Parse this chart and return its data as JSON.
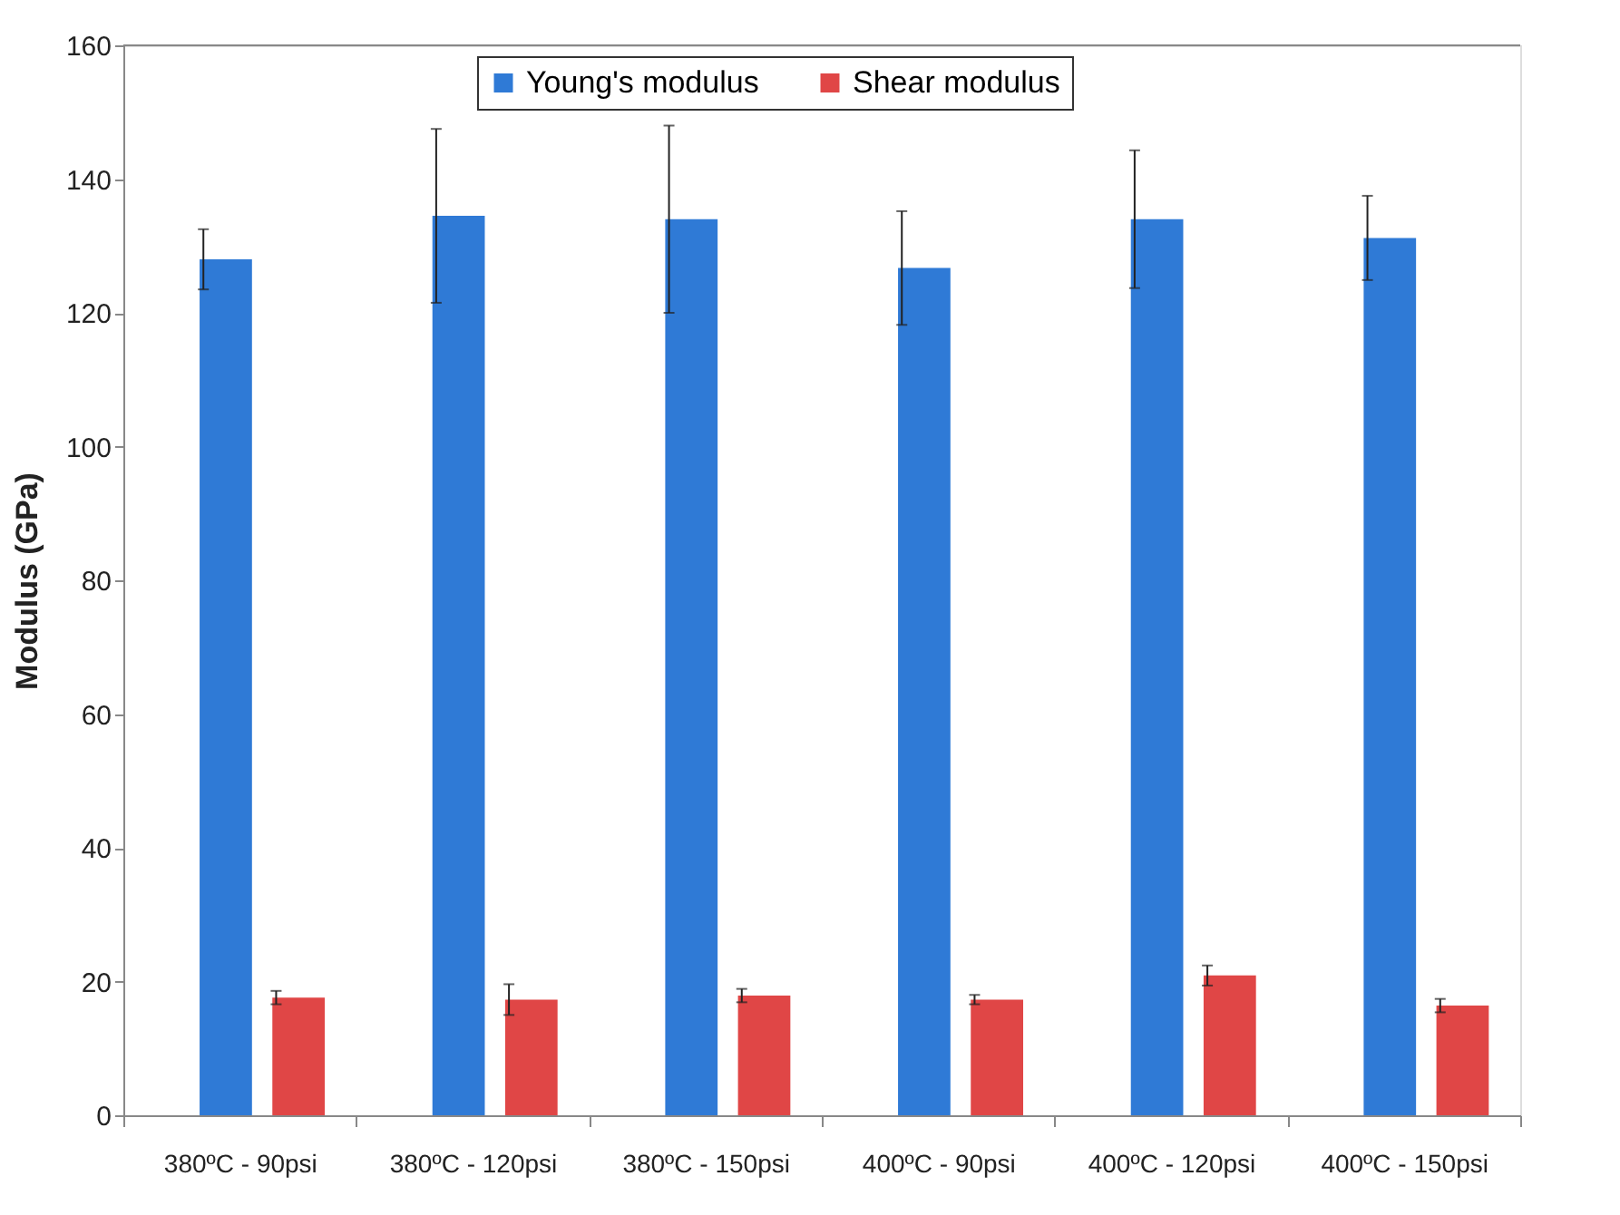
{
  "chart_data": {
    "type": "bar",
    "ylabel": "Modulus (GPa)",
    "categories": [
      "380ºC - 90psi",
      "380ºC - 120psi",
      "380ºC - 150psi",
      "400ºC - 90psi",
      "400ºC - 120psi",
      "400ºC - 150psi"
    ],
    "series": [
      {
        "name": "Young's modulus",
        "color": "#2f7ad6",
        "values": [
          128,
          134.5,
          134,
          126.7,
          134,
          131.2
        ],
        "errors": [
          4.5,
          13,
          14,
          8.5,
          10.3,
          6.3
        ]
      },
      {
        "name": "Shear modulus",
        "color": "#e04646",
        "values": [
          17.6,
          17.3,
          17.9,
          17.3,
          20.9,
          16.4
        ],
        "errors": [
          1,
          2.3,
          1,
          0.7,
          1.5,
          1
        ]
      }
    ],
    "ylim": [
      0,
      160
    ],
    "yticks": [
      0,
      20,
      40,
      60,
      80,
      100,
      120,
      140,
      160
    ],
    "grid": false,
    "legend": "top"
  }
}
